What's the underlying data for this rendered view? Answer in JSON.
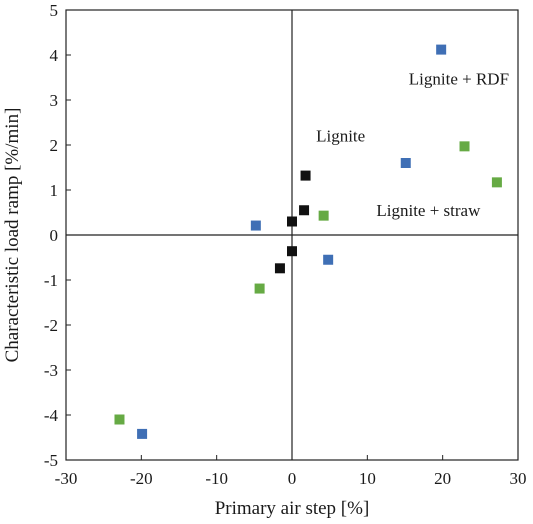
{
  "chart_data": {
    "type": "scatter",
    "title": "",
    "xlabel": "Primary air step [%]",
    "ylabel": "Characteristic load ramp [%/min]",
    "xlim": [
      -30,
      30
    ],
    "ylim": [
      -5,
      5
    ],
    "xticks": [
      -30,
      -20,
      -10,
      0,
      10,
      20,
      30
    ],
    "yticks": [
      -5,
      -4,
      -3,
      -2,
      -1,
      0,
      1,
      2,
      3,
      4,
      5
    ],
    "xtick_labels": [
      "-30",
      "-20",
      "-10",
      "0",
      "10",
      "20",
      "30"
    ],
    "ytick_labels": [
      "-5",
      "-4",
      "-3",
      "-2",
      "-1",
      "0",
      "1",
      "2",
      "3",
      "4",
      "5"
    ],
    "grid": false,
    "series": [
      {
        "name": "Lignite",
        "color": "#111111",
        "points": [
          {
            "x": 1.8,
            "y": 1.32
          },
          {
            "x": 1.6,
            "y": 0.55
          },
          {
            "x": 0.0,
            "y": 0.3
          },
          {
            "x": 0.0,
            "y": -0.36
          },
          {
            "x": -1.6,
            "y": -0.74
          }
        ]
      },
      {
        "name": "Lignite + RDF",
        "color": "#3f6fb5",
        "points": [
          {
            "x": 19.8,
            "y": 4.12
          },
          {
            "x": 15.1,
            "y": 1.6
          },
          {
            "x": -4.8,
            "y": 0.21
          },
          {
            "x": 4.8,
            "y": -0.55
          },
          {
            "x": -19.9,
            "y": -4.42
          }
        ]
      },
      {
        "name": "Lignite + straw",
        "color": "#66aa44",
        "points": [
          {
            "x": 22.9,
            "y": 1.97
          },
          {
            "x": 27.2,
            "y": 1.17
          },
          {
            "x": 4.2,
            "y": 0.43
          },
          {
            "x": -4.3,
            "y": -1.19
          },
          {
            "x": -22.9,
            "y": -4.1
          }
        ]
      }
    ],
    "annotations": [
      {
        "text": "Lignite + RDF",
        "at": {
          "x": 15.5,
          "y": 3.35
        },
        "anchor": "start"
      },
      {
        "text": "Lignite",
        "at": {
          "x": 3.2,
          "y": 2.08
        },
        "anchor": "start"
      },
      {
        "text": "Lignite + straw",
        "at": {
          "x": 11.2,
          "y": 0.42
        },
        "anchor": "start"
      }
    ]
  }
}
